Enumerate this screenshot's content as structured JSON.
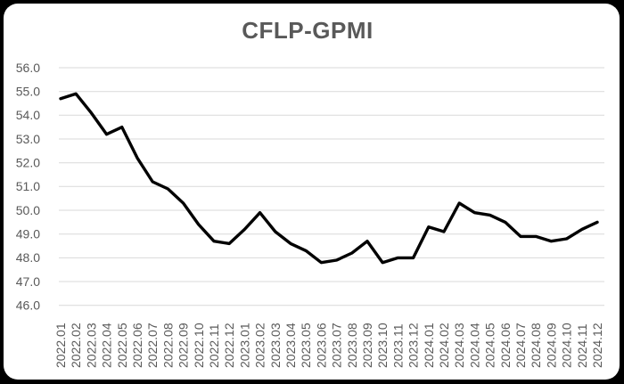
{
  "page": {
    "background": "#000000",
    "card_background": "#ffffff"
  },
  "chart_data": {
    "type": "line",
    "title": "CFLP-GPMI",
    "title_color": "#595959",
    "xlabel": "",
    "ylabel": "",
    "legend_position": "none",
    "grid": "horizontal",
    "grid_color": "#d9d9d9",
    "axis_label_color": "#595959",
    "ylim": [
      46.0,
      56.0
    ],
    "ytick_step": 1.0,
    "x_label_rotation": -90,
    "categories": [
      "2022.01",
      "2022.02",
      "2022.03",
      "2022.04",
      "2022.05",
      "2022.06",
      "2022.07",
      "2022.08",
      "2022.09",
      "2022.10",
      "2022.11",
      "2022.12",
      "2023.01",
      "2023.02",
      "2023.03",
      "2023.04",
      "2023.05",
      "2023.06",
      "2023.07",
      "2023.08",
      "2023.09",
      "2023.10",
      "2023.11",
      "2023.12",
      "2024.01",
      "2024.02",
      "2024.03",
      "2024.04",
      "2024.05",
      "2024.06",
      "2024.07",
      "2024.08",
      "2024.09",
      "2024.10",
      "2024.11",
      "2024.12"
    ],
    "series": [
      {
        "name": "CFLP-GPMI",
        "color": "#000000",
        "values": [
          54.7,
          54.9,
          54.1,
          53.2,
          53.5,
          52.2,
          51.2,
          50.9,
          50.3,
          49.4,
          48.7,
          48.6,
          49.2,
          49.9,
          49.1,
          48.6,
          48.3,
          47.8,
          47.9,
          48.2,
          48.7,
          47.8,
          48.0,
          48.0,
          49.3,
          49.1,
          50.3,
          49.9,
          49.8,
          49.5,
          48.9,
          48.9,
          48.7,
          48.8,
          49.2,
          49.5
        ]
      }
    ]
  }
}
